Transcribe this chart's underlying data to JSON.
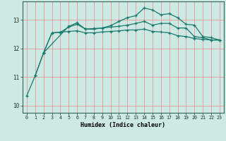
{
  "xlabel": "Humidex (Indice chaleur)",
  "bg_color": "#cde9e4",
  "grid_color": "#ee8888",
  "line_color": "#1a7a6e",
  "xlim": [
    -0.5,
    23.5
  ],
  "ylim": [
    9.75,
    13.65
  ],
  "xticks": [
    0,
    1,
    2,
    3,
    4,
    5,
    6,
    7,
    8,
    9,
    10,
    11,
    12,
    13,
    14,
    15,
    16,
    17,
    18,
    19,
    20,
    21,
    22,
    23
  ],
  "yticks": [
    10,
    11,
    12,
    13
  ],
  "series1_x": [
    0,
    1,
    2,
    3,
    4,
    5,
    6,
    7,
    8,
    9,
    10,
    11,
    12,
    13,
    14,
    15,
    16,
    17,
    18,
    19,
    20,
    21,
    22,
    23
  ],
  "series1_y": [
    10.35,
    11.05,
    11.85,
    12.55,
    12.57,
    12.6,
    12.62,
    12.55,
    12.55,
    12.58,
    12.6,
    12.62,
    12.65,
    12.65,
    12.68,
    12.6,
    12.58,
    12.55,
    12.45,
    12.42,
    12.35,
    12.32,
    12.3,
    12.3
  ],
  "series2_x": [
    2,
    3,
    4,
    5,
    6,
    7,
    8,
    9,
    10,
    11,
    12,
    13,
    14,
    15,
    16,
    17,
    18,
    19,
    20,
    21,
    22,
    23
  ],
  "series2_y": [
    11.85,
    12.55,
    12.57,
    12.75,
    12.85,
    12.68,
    12.7,
    12.72,
    12.75,
    12.78,
    12.82,
    12.88,
    12.95,
    12.82,
    12.88,
    12.88,
    12.72,
    12.72,
    12.42,
    12.38,
    12.3,
    12.3
  ],
  "series3_x": [
    1,
    2,
    5,
    6,
    7,
    8,
    9,
    10,
    11,
    12,
    13,
    14,
    15,
    16,
    17,
    18,
    19,
    20,
    21,
    22,
    23
  ],
  "series3_y": [
    11.05,
    11.85,
    12.78,
    12.9,
    12.68,
    12.68,
    12.72,
    12.8,
    12.95,
    13.08,
    13.15,
    13.42,
    13.35,
    13.18,
    13.22,
    13.08,
    12.85,
    12.82,
    12.42,
    12.38,
    12.3
  ]
}
